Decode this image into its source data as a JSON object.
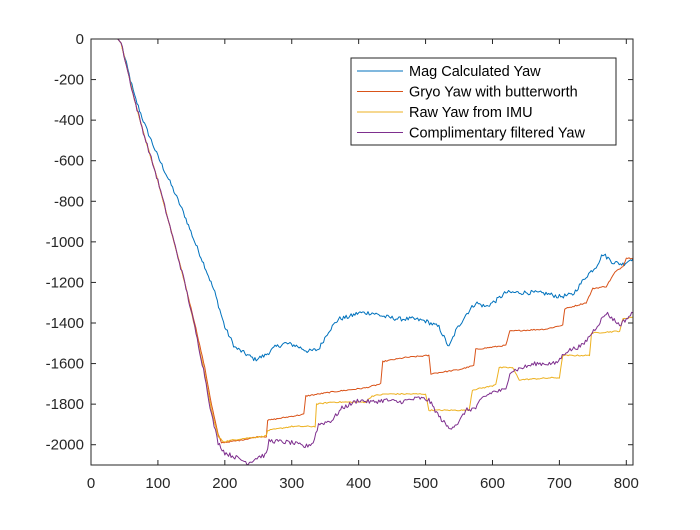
{
  "chart_data": {
    "type": "line",
    "title": "",
    "xlabel": "",
    "ylabel": "",
    "xlim": [
      0,
      810
    ],
    "ylim": [
      -2100,
      0
    ],
    "xticks": [
      0,
      100,
      200,
      300,
      400,
      500,
      600,
      700,
      800
    ],
    "yticks": [
      0,
      -200,
      -400,
      -600,
      -800,
      -1000,
      -1200,
      -1400,
      -1600,
      -1800,
      -2000
    ],
    "grid": false,
    "legend_position": "top-right",
    "series": [
      {
        "name": "Mag Calculated Yaw",
        "color": "#0072BD",
        "points": [
          [
            0,
            0
          ],
          [
            40,
            0
          ],
          [
            45,
            -20
          ],
          [
            55,
            -150
          ],
          [
            65,
            -280
          ],
          [
            80,
            -420
          ],
          [
            100,
            -580
          ],
          [
            120,
            -720
          ],
          [
            140,
            -870
          ],
          [
            155,
            -1000
          ],
          [
            170,
            -1120
          ],
          [
            185,
            -1250
          ],
          [
            200,
            -1420
          ],
          [
            215,
            -1520
          ],
          [
            230,
            -1550
          ],
          [
            245,
            -1580
          ],
          [
            260,
            -1560
          ],
          [
            275,
            -1520
          ],
          [
            290,
            -1500
          ],
          [
            305,
            -1510
          ],
          [
            325,
            -1540
          ],
          [
            340,
            -1530
          ],
          [
            355,
            -1440
          ],
          [
            370,
            -1380
          ],
          [
            385,
            -1370
          ],
          [
            400,
            -1350
          ],
          [
            420,
            -1350
          ],
          [
            440,
            -1370
          ],
          [
            460,
            -1380
          ],
          [
            480,
            -1380
          ],
          [
            500,
            -1390
          ],
          [
            520,
            -1420
          ],
          [
            535,
            -1520
          ],
          [
            545,
            -1440
          ],
          [
            560,
            -1360
          ],
          [
            575,
            -1300
          ],
          [
            590,
            -1320
          ],
          [
            605,
            -1290
          ],
          [
            620,
            -1250
          ],
          [
            640,
            -1250
          ],
          [
            660,
            -1250
          ],
          [
            680,
            -1255
          ],
          [
            700,
            -1270
          ],
          [
            720,
            -1260
          ],
          [
            740,
            -1170
          ],
          [
            755,
            -1120
          ],
          [
            765,
            -1060
          ],
          [
            780,
            -1100
          ],
          [
            795,
            -1110
          ],
          [
            810,
            -1080
          ]
        ]
      },
      {
        "name": "Gryo Yaw with butterworth",
        "color": "#D95319",
        "points": [
          [
            0,
            0
          ],
          [
            40,
            0
          ],
          [
            45,
            -20
          ],
          [
            55,
            -160
          ],
          [
            65,
            -300
          ],
          [
            80,
            -480
          ],
          [
            100,
            -700
          ],
          [
            120,
            -950
          ],
          [
            140,
            -1200
          ],
          [
            155,
            -1400
          ],
          [
            170,
            -1620
          ],
          [
            180,
            -1800
          ],
          [
            190,
            -1950
          ],
          [
            195,
            -1990
          ],
          [
            220,
            -1980
          ],
          [
            250,
            -1960
          ],
          [
            262,
            -1960
          ],
          [
            264,
            -1880
          ],
          [
            300,
            -1860
          ],
          [
            318,
            -1850
          ],
          [
            321,
            -1760
          ],
          [
            360,
            -1740
          ],
          [
            410,
            -1720
          ],
          [
            433,
            -1700
          ],
          [
            436,
            -1590
          ],
          [
            470,
            -1570
          ],
          [
            505,
            -1560
          ],
          [
            508,
            -1650
          ],
          [
            550,
            -1630
          ],
          [
            572,
            -1610
          ],
          [
            575,
            -1530
          ],
          [
            620,
            -1510
          ],
          [
            626,
            -1440
          ],
          [
            680,
            -1430
          ],
          [
            705,
            -1410
          ],
          [
            708,
            -1330
          ],
          [
            740,
            -1300
          ],
          [
            750,
            -1230
          ],
          [
            770,
            -1220
          ],
          [
            783,
            -1150
          ],
          [
            795,
            -1120
          ],
          [
            800,
            -1080
          ],
          [
            810,
            -1080
          ]
        ]
      },
      {
        "name": "Raw Yaw from IMU",
        "color": "#EDB120",
        "points": [
          [
            0,
            0
          ],
          [
            40,
            0
          ],
          [
            45,
            -20
          ],
          [
            55,
            -160
          ],
          [
            65,
            -300
          ],
          [
            80,
            -480
          ],
          [
            100,
            -700
          ],
          [
            120,
            -950
          ],
          [
            140,
            -1200
          ],
          [
            155,
            -1420
          ],
          [
            170,
            -1650
          ],
          [
            180,
            -1830
          ],
          [
            190,
            -1960
          ],
          [
            198,
            -1985
          ],
          [
            225,
            -1970
          ],
          [
            255,
            -1960
          ],
          [
            262,
            -1955
          ],
          [
            264,
            -1930
          ],
          [
            300,
            -1910
          ],
          [
            335,
            -1910
          ],
          [
            337,
            -1800
          ],
          [
            360,
            -1790
          ],
          [
            410,
            -1790
          ],
          [
            420,
            -1760
          ],
          [
            440,
            -1750
          ],
          [
            500,
            -1750
          ],
          [
            505,
            -1830
          ],
          [
            550,
            -1830
          ],
          [
            565,
            -1830
          ],
          [
            570,
            -1730
          ],
          [
            600,
            -1710
          ],
          [
            605,
            -1700
          ],
          [
            610,
            -1620
          ],
          [
            630,
            -1620
          ],
          [
            640,
            -1680
          ],
          [
            690,
            -1670
          ],
          [
            700,
            -1670
          ],
          [
            705,
            -1560
          ],
          [
            745,
            -1560
          ],
          [
            748,
            -1450
          ],
          [
            790,
            -1440
          ],
          [
            795,
            -1380
          ],
          [
            810,
            -1370
          ]
        ]
      },
      {
        "name": "Complimentary filtered Yaw",
        "color": "#7E2F8E",
        "points": [
          [
            0,
            0
          ],
          [
            40,
            0
          ],
          [
            45,
            -20
          ],
          [
            55,
            -160
          ],
          [
            65,
            -300
          ],
          [
            80,
            -480
          ],
          [
            100,
            -700
          ],
          [
            120,
            -950
          ],
          [
            140,
            -1200
          ],
          [
            155,
            -1420
          ],
          [
            170,
            -1660
          ],
          [
            180,
            -1850
          ],
          [
            190,
            -1990
          ],
          [
            200,
            -2040
          ],
          [
            215,
            -2060
          ],
          [
            235,
            -2090
          ],
          [
            250,
            -2060
          ],
          [
            262,
            -2050
          ],
          [
            266,
            -1980
          ],
          [
            300,
            -1990
          ],
          [
            320,
            -2010
          ],
          [
            332,
            -1990
          ],
          [
            340,
            -1900
          ],
          [
            360,
            -1880
          ],
          [
            375,
            -1820
          ],
          [
            400,
            -1780
          ],
          [
            420,
            -1790
          ],
          [
            440,
            -1780
          ],
          [
            460,
            -1790
          ],
          [
            490,
            -1770
          ],
          [
            505,
            -1780
          ],
          [
            520,
            -1860
          ],
          [
            535,
            -1920
          ],
          [
            550,
            -1890
          ],
          [
            560,
            -1830
          ],
          [
            575,
            -1820
          ],
          [
            585,
            -1770
          ],
          [
            600,
            -1740
          ],
          [
            620,
            -1730
          ],
          [
            626,
            -1640
          ],
          [
            645,
            -1620
          ],
          [
            665,
            -1600
          ],
          [
            695,
            -1600
          ],
          [
            710,
            -1540
          ],
          [
            735,
            -1510
          ],
          [
            755,
            -1420
          ],
          [
            770,
            -1350
          ],
          [
            790,
            -1410
          ],
          [
            810,
            -1350
          ]
        ]
      }
    ]
  }
}
